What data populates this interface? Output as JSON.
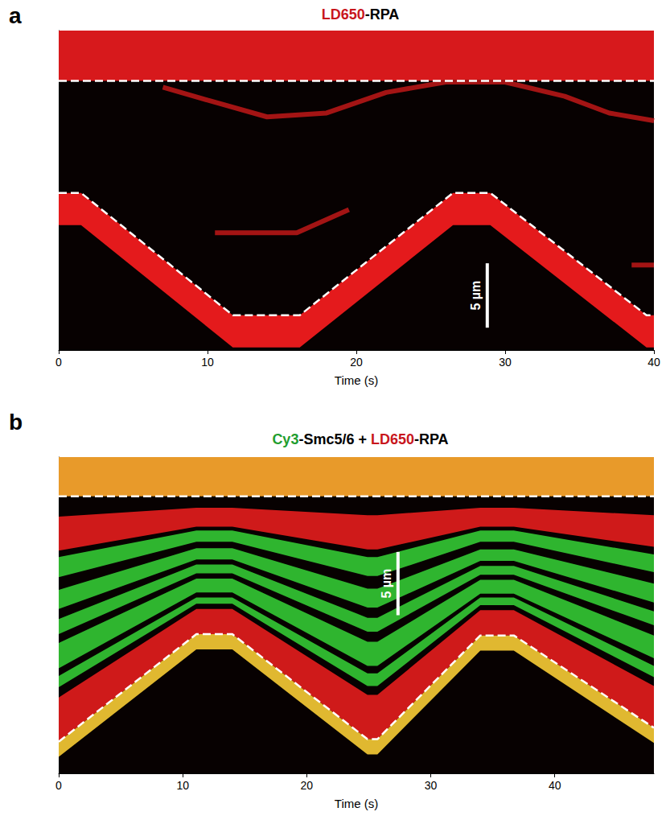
{
  "chart_data": [
    {
      "type": "kymograph",
      "panel": "a",
      "title": [
        {
          "text": "LD650",
          "color": "#c8161d"
        },
        {
          "text": "-RPA",
          "color": "#000000"
        }
      ],
      "xlabel": "Time (s)",
      "xlim": [
        0,
        40
      ],
      "xticks": [
        0,
        10,
        20,
        30,
        40
      ],
      "ylim": [
        0,
        24.8
      ],
      "tick_labels": "x",
      "scale_bar": {
        "length": 5,
        "label": "5 µm"
      },
      "series": [
        {
          "type": "band",
          "color": "#d7191c",
          "x": [
            0,
            40
          ],
          "upper": [
            24.8,
            24.8
          ],
          "lower": [
            20.9,
            20.9
          ]
        },
        {
          "type": "band",
          "color": "#e41a1c",
          "x": [
            0,
            1.5,
            11.7,
            16.2,
            26.5,
            29,
            39.5,
            40
          ],
          "upper": [
            12.2,
            12.2,
            2.7,
            2.7,
            12.2,
            12.2,
            2.7,
            2.7
          ],
          "lower": [
            9.7,
            9.7,
            0.2,
            0.2,
            9.7,
            9.7,
            0.2,
            0.2
          ]
        },
        {
          "type": "line",
          "color": "#a31414",
          "line_style": "solid",
          "x": [
            7,
            10,
            14,
            18,
            22,
            26,
            30,
            34,
            37,
            40
          ],
          "values": [
            20.4,
            19.4,
            18.1,
            18.4,
            20.0,
            20.8,
            20.8,
            19.7,
            18.4,
            17.8
          ]
        },
        {
          "type": "line",
          "color": "#a31414",
          "line_style": "solid",
          "x": [
            10.5,
            16,
            19.5
          ],
          "values": [
            9.1,
            9.1,
            10.9
          ]
        },
        {
          "type": "line",
          "color": "#a31414",
          "line_style": "solid",
          "x": [
            38.5,
            40
          ],
          "values": [
            6.6,
            6.6
          ]
        },
        {
          "type": "line",
          "color": "#ffffff",
          "line_style": "dashed",
          "x": [
            0,
            40
          ],
          "values": [
            20.9,
            20.9
          ]
        },
        {
          "type": "line",
          "color": "#ffffff",
          "line_style": "dashed",
          "x": [
            0,
            1.5,
            11.7,
            16.2,
            26.5,
            29,
            39.5,
            40
          ],
          "values": [
            12.2,
            12.2,
            2.7,
            2.7,
            12.2,
            12.2,
            2.7,
            2.7
          ]
        }
      ]
    },
    {
      "type": "kymograph",
      "panel": "b",
      "title": [
        {
          "text": "Cy3",
          "color": "#1f9e2f"
        },
        {
          "text": "-Smc5/6 + ",
          "color": "#000000"
        },
        {
          "text": "LD650",
          "color": "#c8161d"
        },
        {
          "text": "-RPA",
          "color": "#000000"
        }
      ],
      "xlabel": "Time (s)",
      "xlim": [
        0,
        48
      ],
      "xticks": [
        0,
        10,
        20,
        30,
        40
      ],
      "ylim": [
        0,
        25
      ],
      "tick_labels": "x",
      "scale_bar": {
        "length": 5,
        "label": "5 µm"
      },
      "series": [
        {
          "type": "band",
          "color": "#e89a2a",
          "x": [
            0,
            48
          ],
          "upper": [
            25,
            25
          ],
          "lower": [
            21.9,
            21.9
          ]
        },
        {
          "type": "band",
          "color": "#cf1a1a",
          "x": [
            0,
            11.1,
            14,
            24.9,
            25.7,
            34,
            36.7,
            48
          ],
          "upper": [
            20.3,
            21.0,
            21.0,
            20.4,
            20.4,
            21.0,
            21.0,
            20.4
          ],
          "lower": [
            17.6,
            19.5,
            19.5,
            17.7,
            17.7,
            19.5,
            19.5,
            17.9
          ]
        },
        {
          "type": "band",
          "color": "#2fb52f",
          "x": [
            0,
            11.1,
            14,
            24.9,
            25.7,
            34,
            36.7,
            48
          ],
          "upper": [
            17.1,
            19.2,
            19.2,
            17.1,
            17.1,
            19.2,
            19.2,
            17.3
          ],
          "lower": [
            15.5,
            18.3,
            18.3,
            15.6,
            15.6,
            18.3,
            18.3,
            15.9
          ]
        },
        {
          "type": "band",
          "color": "#2fb52f",
          "x": [
            0,
            11.1,
            14,
            24.9,
            25.7,
            34,
            36.7,
            48
          ],
          "upper": [
            14.5,
            17.8,
            17.8,
            14.6,
            14.6,
            17.7,
            17.7,
            15.0
          ],
          "lower": [
            13.0,
            16.9,
            16.9,
            13.1,
            13.1,
            16.8,
            16.8,
            13.5
          ]
        },
        {
          "type": "band",
          "color": "#2fb52f",
          "x": [
            0,
            11.1,
            14,
            24.9,
            25.7,
            34,
            36.7,
            48
          ],
          "upper": [
            12.2,
            16.5,
            16.5,
            12.3,
            12.3,
            16.4,
            16.4,
            12.8
          ],
          "lower": [
            11.0,
            15.8,
            15.8,
            11.2,
            11.2,
            15.7,
            15.7,
            11.7
          ]
        },
        {
          "type": "band",
          "color": "#2fb52f",
          "x": [
            0,
            11.1,
            14,
            24.9,
            25.7,
            34,
            36.7,
            48
          ],
          "upper": [
            10.3,
            15.4,
            15.4,
            10.4,
            10.4,
            15.3,
            15.3,
            10.9
          ],
          "lower": [
            8.3,
            14.3,
            14.3,
            8.5,
            8.5,
            14.2,
            14.2,
            9.1
          ]
        },
        {
          "type": "band",
          "color": "#2fb52f",
          "x": [
            0,
            11.1,
            14,
            24.9,
            25.7,
            34,
            36.7,
            48
          ],
          "upper": [
            7.7,
            13.9,
            13.9,
            7.9,
            7.9,
            13.9,
            13.9,
            8.5
          ],
          "lower": [
            6.8,
            13.4,
            13.4,
            6.9,
            6.9,
            13.3,
            13.3,
            7.6
          ]
        },
        {
          "type": "band",
          "color": "#cf1a1a",
          "x": [
            0,
            11.1,
            14,
            24.9,
            25.7,
            34,
            36.7,
            48
          ],
          "upper": [
            6.0,
            13.0,
            13.0,
            6.2,
            6.2,
            12.9,
            12.9,
            6.9
          ],
          "lower": [
            2.5,
            11.0,
            11.0,
            2.7,
            2.7,
            10.9,
            10.9,
            3.6
          ]
        },
        {
          "type": "band",
          "color": "#e0b830",
          "x": [
            0,
            11.1,
            14,
            24.9,
            25.7,
            34,
            36.7,
            48
          ],
          "upper": [
            2.5,
            11.0,
            11.0,
            2.7,
            2.7,
            10.9,
            10.9,
            3.6
          ],
          "lower": [
            1.3,
            9.8,
            9.8,
            1.5,
            1.5,
            9.7,
            9.7,
            2.4
          ]
        },
        {
          "type": "line",
          "color": "#ffffff",
          "line_style": "dashed",
          "x": [
            0,
            48
          ],
          "values": [
            21.9,
            21.9
          ]
        },
        {
          "type": "line",
          "color": "#ffffff",
          "line_style": "dashed",
          "x": [
            0,
            11.1,
            14,
            24.9,
            25.7,
            34,
            36.7,
            48
          ],
          "values": [
            2.5,
            11.0,
            11.0,
            2.7,
            2.7,
            10.9,
            10.9,
            3.6
          ]
        }
      ]
    }
  ]
}
